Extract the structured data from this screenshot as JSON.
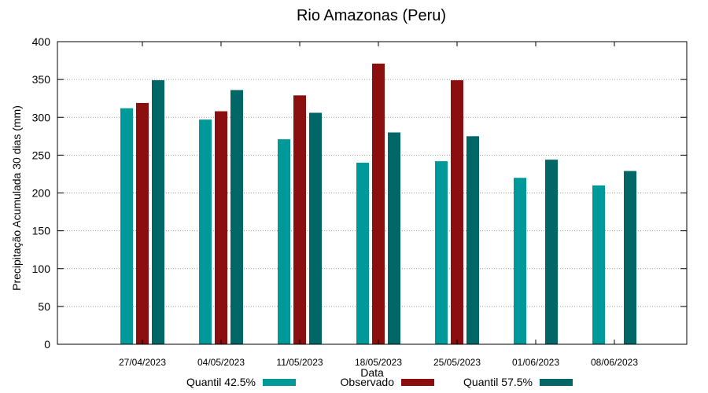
{
  "chart_data": {
    "type": "bar",
    "title": "Rio Amazonas (Peru)",
    "xlabel": "Data",
    "ylabel": "Precipitação Acumulada 30 dias (mm)",
    "ylim": [
      0,
      400
    ],
    "yticks": [
      0,
      50,
      100,
      150,
      200,
      250,
      300,
      350,
      400
    ],
    "grid": true,
    "legend_position": "bottom",
    "categories": [
      "27/04/2023",
      "04/05/2023",
      "11/05/2023",
      "18/05/2023",
      "25/05/2023",
      "01/06/2023",
      "08/06/2023"
    ],
    "series": [
      {
        "name": "Quantil 42.5%",
        "color": "#009999",
        "values": [
          312,
          297,
          271,
          240,
          242,
          220,
          210
        ]
      },
      {
        "name": "Observado",
        "color": "#8b0f0f",
        "values": [
          319,
          308,
          329,
          371,
          349,
          null,
          null
        ]
      },
      {
        "name": "Quantil 57.5%",
        "color": "#006666",
        "values": [
          349,
          336,
          306,
          280,
          275,
          244,
          229
        ]
      }
    ]
  }
}
